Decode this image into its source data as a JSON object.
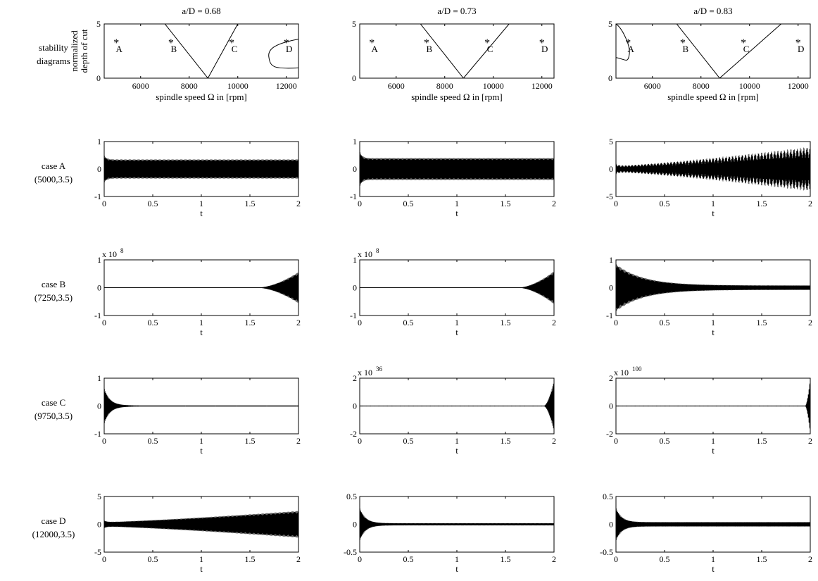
{
  "colors": {
    "background": "#ffffff",
    "ink": "#000000"
  },
  "row_labels": [
    {
      "line1": "stability",
      "line2": "diagrams"
    },
    {
      "line1": "case A",
      "line2": "(5000,3.5)"
    },
    {
      "line1": "case B",
      "line2": "(7250,3.5)"
    },
    {
      "line1": "case C",
      "line2": "(9750,3.5)"
    },
    {
      "line1": "case D",
      "line2": "(12000,3.5)"
    }
  ],
  "chart_data": [
    {
      "id": "stab-068",
      "type": "line",
      "title": "a/D = 0.68",
      "xlabel": "spindle speed Ω in [rpm]",
      "ylabel": [
        "normalized",
        "depth of cut"
      ],
      "xlim": [
        4500,
        12500
      ],
      "ylim": [
        0,
        5
      ],
      "xticks": [
        6000,
        8000,
        10000,
        12000
      ],
      "yticks": [
        0,
        5
      ],
      "v_lobe": {
        "left": [
          7000,
          5.0
        ],
        "vertex": [
          8770,
          0.0
        ],
        "right": [
          10000,
          5.0
        ]
      },
      "side_lobes": [
        {
          "side": "right",
          "tip": [
            11280,
            1.95
          ],
          "edge_x": 12500,
          "upper": 3.6,
          "lower": 0.95
        }
      ],
      "points": [
        {
          "label": "A",
          "x": 5000,
          "y": 3.5
        },
        {
          "label": "B",
          "x": 7250,
          "y": 3.5
        },
        {
          "label": "C",
          "x": 9750,
          "y": 3.5
        },
        {
          "label": "D",
          "x": 12000,
          "y": 3.5
        }
      ]
    },
    {
      "id": "stab-073",
      "type": "line",
      "title": "a/D = 0.73",
      "xlabel": "spindle speed Ω in [rpm]",
      "ylabel": [],
      "xlim": [
        4500,
        12500
      ],
      "ylim": [
        0,
        5
      ],
      "xticks": [
        6000,
        8000,
        10000,
        12000
      ],
      "yticks": [
        0,
        5
      ],
      "v_lobe": {
        "left": [
          7000,
          5.0
        ],
        "vertex": [
          8770,
          0.0
        ],
        "right": [
          10650,
          5.0
        ]
      },
      "side_lobes": [],
      "points": [
        {
          "label": "A",
          "x": 5000,
          "y": 3.5
        },
        {
          "label": "B",
          "x": 7250,
          "y": 3.5
        },
        {
          "label": "C",
          "x": 9750,
          "y": 3.5
        },
        {
          "label": "D",
          "x": 12000,
          "y": 3.5
        }
      ]
    },
    {
      "id": "stab-083",
      "type": "line",
      "title": "a/D = 0.83",
      "xlabel": "spindle speed Ω in [rpm]",
      "ylabel": [],
      "xlim": [
        4500,
        12500
      ],
      "ylim": [
        0,
        5
      ],
      "xticks": [
        6000,
        8000,
        10000,
        12000
      ],
      "yticks": [
        0,
        5
      ],
      "v_lobe": {
        "left": [
          7000,
          5.0
        ],
        "vertex": [
          8770,
          0.0
        ],
        "right": [
          11300,
          5.0
        ]
      },
      "side_lobes": [
        {
          "side": "left",
          "tip": [
            5050,
            2.2
          ],
          "edge_x": 4500,
          "upper": 5.0,
          "lower": 1.9
        }
      ],
      "points": [
        {
          "label": "A",
          "x": 5000,
          "y": 3.5
        },
        {
          "label": "B",
          "x": 7250,
          "y": 3.5
        },
        {
          "label": "C",
          "x": 9750,
          "y": 3.5
        },
        {
          "label": "D",
          "x": 12000,
          "y": 3.5
        }
      ]
    },
    {
      "id": "A-068",
      "type": "line",
      "xlabel": "t",
      "xlim": [
        0,
        2
      ],
      "ylim": [
        -1,
        1
      ],
      "yticks": [
        "1",
        "0",
        "-1"
      ],
      "xticks": [
        "0",
        "0.5",
        "1",
        "1.5",
        "2"
      ],
      "response": {
        "shape": "steady",
        "peak": 0.5,
        "steady": 0.35,
        "growth": 0,
        "onset": 0,
        "stripes": 0
      }
    },
    {
      "id": "A-073",
      "type": "line",
      "xlabel": "t",
      "xlim": [
        0,
        2
      ],
      "ylim": [
        -1,
        1
      ],
      "yticks": [
        "1",
        "0",
        "-1"
      ],
      "xticks": [
        "0",
        "0.5",
        "1",
        "1.5",
        "2"
      ],
      "response": {
        "shape": "steady",
        "peak": 0.65,
        "steady": 0.4,
        "growth": 0,
        "onset": 0,
        "stripes": 0
      }
    },
    {
      "id": "A-083",
      "type": "line",
      "xlabel": "t",
      "xlim": [
        0,
        2
      ],
      "ylim": [
        -5,
        5
      ],
      "yticks": [
        "5",
        "0",
        "-5"
      ],
      "xticks": [
        "0",
        "0.5",
        "1",
        "1.5",
        "2"
      ],
      "response": {
        "shape": "growing",
        "peak": 1.0,
        "steady": 0.6,
        "growth": 3.5,
        "onset": 0,
        "stripes": 60
      }
    },
    {
      "id": "B-068",
      "type": "line",
      "xlabel": "t",
      "xlim": [
        0,
        2
      ],
      "ylim": [
        -1,
        1
      ],
      "scale": "8",
      "yticks": [
        "1",
        "0",
        "-1"
      ],
      "xticks": [
        "0",
        "0.5",
        "1",
        "1.5",
        "2"
      ],
      "response": {
        "shape": "late",
        "peak": 0,
        "steady": 0.01,
        "growth": 0.55,
        "onset": 1.6,
        "stripes": 0
      }
    },
    {
      "id": "B-073",
      "type": "line",
      "xlabel": "t",
      "xlim": [
        0,
        2
      ],
      "ylim": [
        -1,
        1
      ],
      "scale": "8",
      "yticks": [
        "1",
        "0",
        "-1"
      ],
      "xticks": [
        "0",
        "0.5",
        "1",
        "1.5",
        "2"
      ],
      "response": {
        "shape": "late",
        "peak": 0,
        "steady": 0.01,
        "growth": 0.58,
        "onset": 1.65,
        "stripes": 0
      }
    },
    {
      "id": "B-083",
      "type": "line",
      "xlabel": "t",
      "xlim": [
        0,
        2
      ],
      "ylim": [
        -1,
        1
      ],
      "yticks": [
        "1",
        "0",
        "-1"
      ],
      "xticks": [
        "0",
        "0.5",
        "1",
        "1.5",
        "2"
      ],
      "response": {
        "shape": "decay-to-band",
        "peak": 0.85,
        "steady": 0.08,
        "growth": 0,
        "onset": 0,
        "stripes": 0
      }
    },
    {
      "id": "C-068",
      "type": "line",
      "xlabel": "t",
      "xlim": [
        0,
        2
      ],
      "ylim": [
        -1,
        1
      ],
      "yticks": [
        "1",
        "0",
        "-1"
      ],
      "xticks": [
        "0",
        "0.5",
        "1",
        "1.5",
        "2"
      ],
      "response": {
        "shape": "decay-to-band",
        "peak": 0.65,
        "steady": 0.02,
        "growth": 0,
        "onset": 0,
        "stripes": 0
      }
    },
    {
      "id": "C-073",
      "type": "line",
      "xlabel": "t",
      "xlim": [
        0,
        2
      ],
      "ylim": [
        -2,
        2
      ],
      "scale": "36",
      "yticks": [
        "2",
        "0",
        "-2"
      ],
      "xticks": [
        "0",
        "0.5",
        "1",
        "1.5",
        "2"
      ],
      "response": {
        "shape": "late",
        "peak": 0,
        "steady": 0.03,
        "growth": 1.8,
        "onset": 1.9,
        "stripes": 0
      }
    },
    {
      "id": "C-083",
      "type": "line",
      "xlabel": "t",
      "xlim": [
        0,
        2
      ],
      "ylim": [
        -2,
        2
      ],
      "scale": "100",
      "yticks": [
        "2",
        "0",
        "-2"
      ],
      "xticks": [
        "0",
        "0.5",
        "1",
        "1.5",
        "2"
      ],
      "response": {
        "shape": "late",
        "peak": 0,
        "steady": 0.03,
        "growth": 2.0,
        "onset": 1.95,
        "stripes": 0
      }
    },
    {
      "id": "D-068",
      "type": "line",
      "xlabel": "t",
      "xlim": [
        0,
        2
      ],
      "ylim": [
        -5,
        5
      ],
      "yticks": [
        "5",
        "0",
        "-5"
      ],
      "xticks": [
        "0",
        "0.5",
        "1",
        "1.5",
        "2"
      ],
      "response": {
        "shape": "growing",
        "peak": 0.7,
        "steady": 0.4,
        "growth": 2.0,
        "onset": 0,
        "stripes": 0
      }
    },
    {
      "id": "D-073",
      "type": "line",
      "xlabel": "t",
      "xlim": [
        0,
        2
      ],
      "ylim": [
        -0.5,
        0.5
      ],
      "yticks": [
        "0.5",
        "0",
        "-0.5"
      ],
      "xticks": [
        "0",
        "0.5",
        "1",
        "1.5",
        "2"
      ],
      "response": {
        "shape": "decay-to-band",
        "peak": 0.3,
        "steady": 0.02,
        "growth": 0,
        "onset": 0,
        "stripes": 0
      }
    },
    {
      "id": "D-083",
      "type": "line",
      "xlabel": "t",
      "xlim": [
        0,
        2
      ],
      "ylim": [
        -0.5,
        0.5
      ],
      "yticks": [
        "0.5",
        "0",
        "-0.5"
      ],
      "xticks": [
        "0",
        "0.5",
        "1",
        "1.5",
        "2"
      ],
      "response": {
        "shape": "decay-to-band",
        "peak": 0.3,
        "steady": 0.04,
        "growth": 0,
        "onset": 0,
        "stripes": 0
      }
    }
  ]
}
